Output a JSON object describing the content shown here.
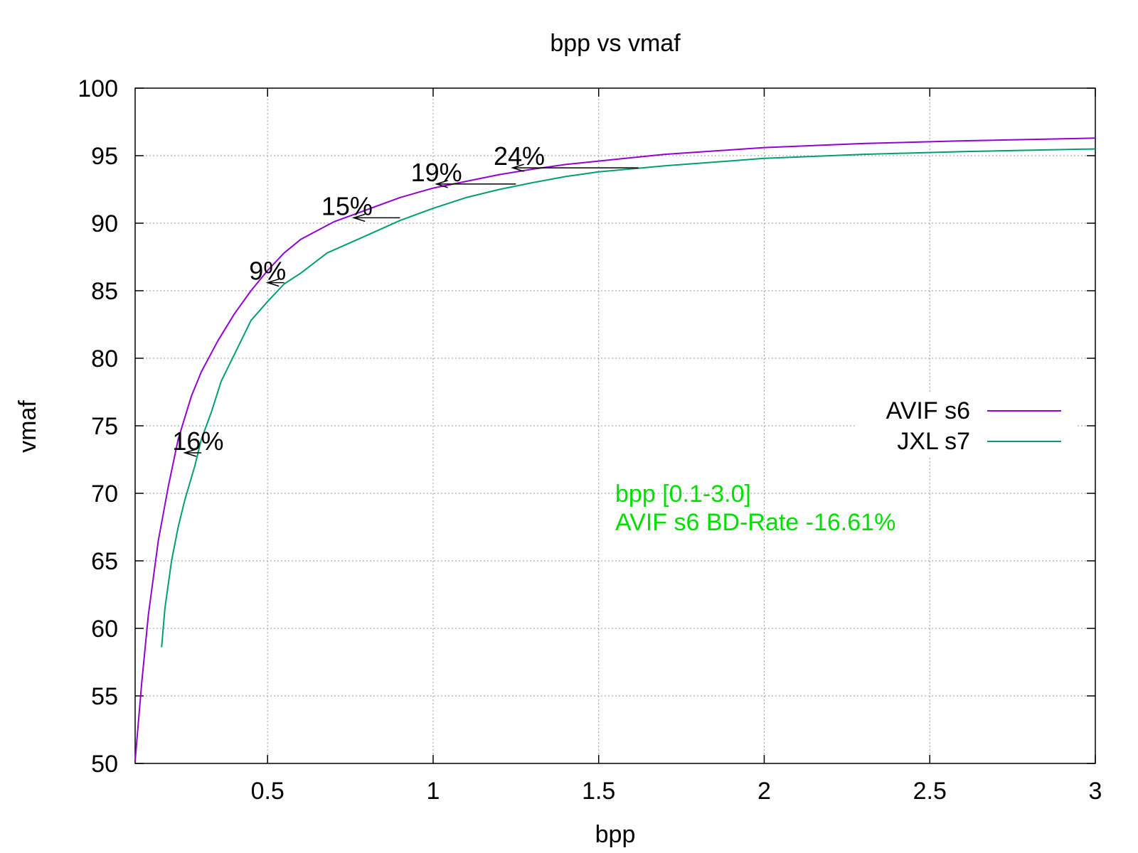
{
  "chart_data": {
    "type": "line",
    "title": "bpp vs vmaf",
    "xlabel": "bpp",
    "ylabel": "vmaf",
    "xlim": [
      0.1,
      3.0
    ],
    "ylim": [
      50,
      100
    ],
    "x_ticks": [
      "0.5",
      "1",
      "1.5",
      "2",
      "2.5",
      "3"
    ],
    "y_ticks": [
      "50",
      "55",
      "60",
      "65",
      "70",
      "75",
      "80",
      "85",
      "90",
      "95",
      "100"
    ],
    "grid": true,
    "legend_position": "right",
    "series": [
      {
        "name": "AVIF s6",
        "color": "#9400d3",
        "points": [
          [
            0.1,
            50.2
          ],
          [
            0.12,
            56.0
          ],
          [
            0.14,
            61.0
          ],
          [
            0.17,
            66.5
          ],
          [
            0.2,
            70.5
          ],
          [
            0.23,
            74.0
          ],
          [
            0.27,
            77.2
          ],
          [
            0.3,
            79.0
          ],
          [
            0.35,
            81.3
          ],
          [
            0.4,
            83.3
          ],
          [
            0.45,
            85.0
          ],
          [
            0.5,
            86.5
          ],
          [
            0.55,
            87.8
          ],
          [
            0.6,
            88.8
          ],
          [
            0.7,
            90.1
          ],
          [
            0.8,
            91.0
          ],
          [
            0.9,
            91.9
          ],
          [
            1.0,
            92.6
          ],
          [
            1.1,
            93.1
          ],
          [
            1.2,
            93.6
          ],
          [
            1.3,
            94.0
          ],
          [
            1.4,
            94.35
          ],
          [
            1.5,
            94.6
          ],
          [
            1.7,
            95.1
          ],
          [
            2.0,
            95.6
          ],
          [
            2.3,
            95.9
          ],
          [
            2.6,
            96.1
          ],
          [
            3.0,
            96.3
          ]
        ]
      },
      {
        "name": "JXL s7",
        "color": "#009e73",
        "points": [
          [
            0.18,
            58.6
          ],
          [
            0.19,
            61.5
          ],
          [
            0.21,
            65.0
          ],
          [
            0.23,
            67.5
          ],
          [
            0.25,
            69.5
          ],
          [
            0.28,
            72.0
          ],
          [
            0.3,
            74.0
          ],
          [
            0.33,
            76.0
          ],
          [
            0.36,
            78.3
          ],
          [
            0.4,
            80.3
          ],
          [
            0.45,
            82.8
          ],
          [
            0.5,
            84.2
          ],
          [
            0.55,
            85.5
          ],
          [
            0.6,
            86.3
          ],
          [
            0.68,
            87.8
          ],
          [
            0.8,
            89.1
          ],
          [
            0.9,
            90.2
          ],
          [
            1.0,
            91.1
          ],
          [
            1.1,
            91.9
          ],
          [
            1.2,
            92.5
          ],
          [
            1.3,
            93.0
          ],
          [
            1.4,
            93.45
          ],
          [
            1.5,
            93.8
          ],
          [
            1.7,
            94.25
          ],
          [
            2.0,
            94.8
          ],
          [
            2.3,
            95.1
          ],
          [
            2.6,
            95.3
          ],
          [
            3.0,
            95.5
          ]
        ]
      }
    ],
    "annotations": [
      {
        "text": "16%",
        "x": 0.29,
        "y": 73.0,
        "arrow_from": 0.3,
        "arrow_to": 0.25
      },
      {
        "text": "9%",
        "x": 0.5,
        "y": 85.6,
        "arrow_from": 0.55,
        "arrow_to": 0.5
      },
      {
        "text": "15%",
        "x": 0.74,
        "y": 90.4,
        "arrow_from": 0.9,
        "arrow_to": 0.76
      },
      {
        "text": "19%",
        "x": 1.01,
        "y": 92.9,
        "arrow_from": 1.25,
        "arrow_to": 1.01
      },
      {
        "text": "24%",
        "x": 1.26,
        "y": 94.1,
        "arrow_from": 1.62,
        "arrow_to": 1.24
      }
    ],
    "note_lines": [
      "bpp [0.1-3.0]",
      "AVIF s6 BD-Rate -16.61%"
    ],
    "note_color": "#00e000",
    "note_x": 1.55,
    "note_y": 70.0
  }
}
